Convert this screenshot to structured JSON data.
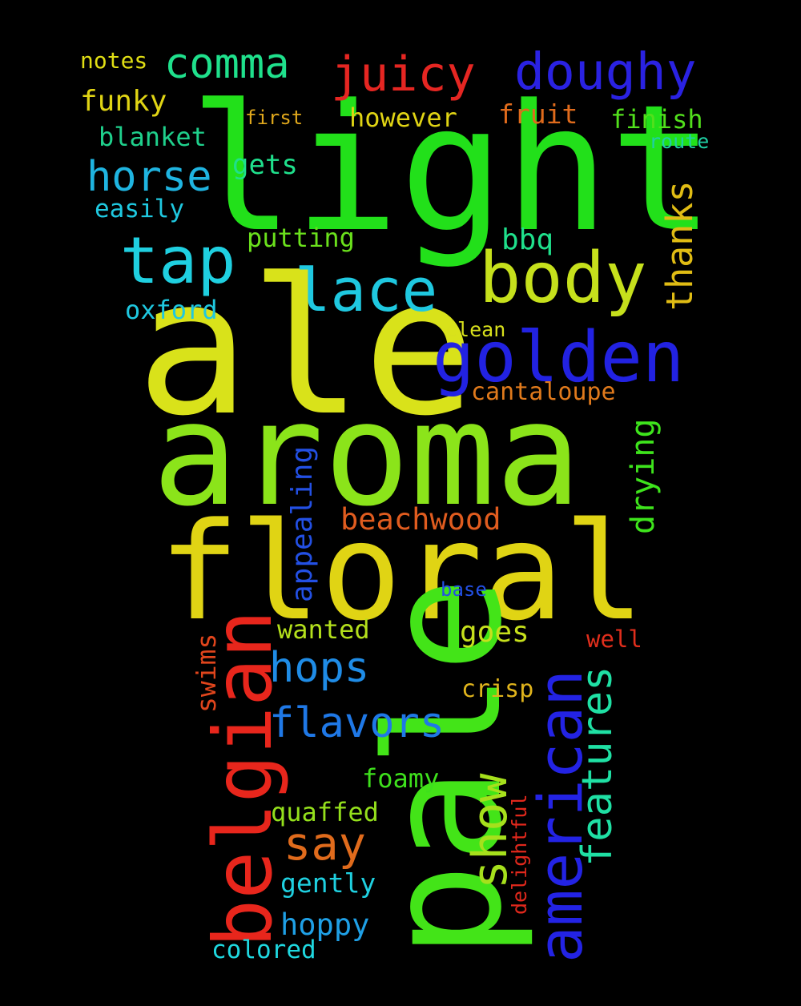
{
  "background": "#000000",
  "words": [
    {
      "text": "light",
      "color": "#22e01a"
    },
    {
      "text": "ale",
      "color": "#d9e21a"
    },
    {
      "text": "aroma",
      "color": "#8be41a"
    },
    {
      "text": "floral",
      "color": "#e0d414"
    },
    {
      "text": "pale",
      "color": "#43e418"
    },
    {
      "text": "belgian",
      "color": "#e8261c"
    },
    {
      "text": "american",
      "color": "#2323e4"
    },
    {
      "text": "golden",
      "color": "#2222e2"
    },
    {
      "text": "body",
      "color": "#c6e01c"
    },
    {
      "text": "lace",
      "color": "#1fc8e0"
    },
    {
      "text": "tap",
      "color": "#1fcfe0"
    },
    {
      "text": "doughy",
      "color": "#2a22e2"
    },
    {
      "text": "juicy",
      "color": "#e52622"
    },
    {
      "text": "comma",
      "color": "#1fe08c"
    },
    {
      "text": "show",
      "color": "#a6e01c"
    },
    {
      "text": "features",
      "color": "#1fe0a4"
    },
    {
      "text": "horse",
      "color": "#1fb4e0"
    },
    {
      "text": "thanks",
      "color": "#e0bc14"
    },
    {
      "text": "hops",
      "color": "#1f8ce6"
    },
    {
      "text": "flavors",
      "color": "#1f78e6"
    },
    {
      "text": "say",
      "color": "#e06b1c"
    },
    {
      "text": "drying",
      "color": "#3ee41c"
    },
    {
      "text": "beachwood",
      "color": "#e05c1f"
    },
    {
      "text": "appealing",
      "color": "#2350e4"
    },
    {
      "text": "swims",
      "color": "#e0451c"
    },
    {
      "text": "cantaloupe",
      "color": "#e07a1c"
    },
    {
      "text": "funky",
      "color": "#e0d414"
    },
    {
      "text": "notes",
      "color": "#e0de14"
    },
    {
      "text": "blanket",
      "color": "#1fd08c"
    },
    {
      "text": "first",
      "color": "#e0a81c"
    },
    {
      "text": "however",
      "color": "#e0d414"
    },
    {
      "text": "fruit",
      "color": "#e06b1c"
    },
    {
      "text": "finish",
      "color": "#52e01c"
    },
    {
      "text": "route",
      "color": "#1fd0a4"
    },
    {
      "text": "gets",
      "color": "#1fe08c"
    },
    {
      "text": "easily",
      "color": "#1fc8e0"
    },
    {
      "text": "putting",
      "color": "#6ae01c"
    },
    {
      "text": "bbq",
      "color": "#1fe08c"
    },
    {
      "text": "oxford",
      "color": "#1fc8e0"
    },
    {
      "text": "clean",
      "color": "#d8e01c"
    },
    {
      "text": "wanted",
      "color": "#b4e01c"
    },
    {
      "text": "goes",
      "color": "#c6e01c"
    },
    {
      "text": "well",
      "color": "#e02e1c"
    },
    {
      "text": "base",
      "color": "#2350e4"
    },
    {
      "text": "crisp",
      "color": "#e0b41c"
    },
    {
      "text": "foamy",
      "color": "#3ee01c"
    },
    {
      "text": "quaffed",
      "color": "#94e01c"
    },
    {
      "text": "delightful",
      "color": "#e0281c"
    },
    {
      "text": "gently",
      "color": "#1fd0e0"
    },
    {
      "text": "hoppy",
      "color": "#1fa0e6"
    },
    {
      "text": "colored",
      "color": "#1fd8e0"
    }
  ]
}
